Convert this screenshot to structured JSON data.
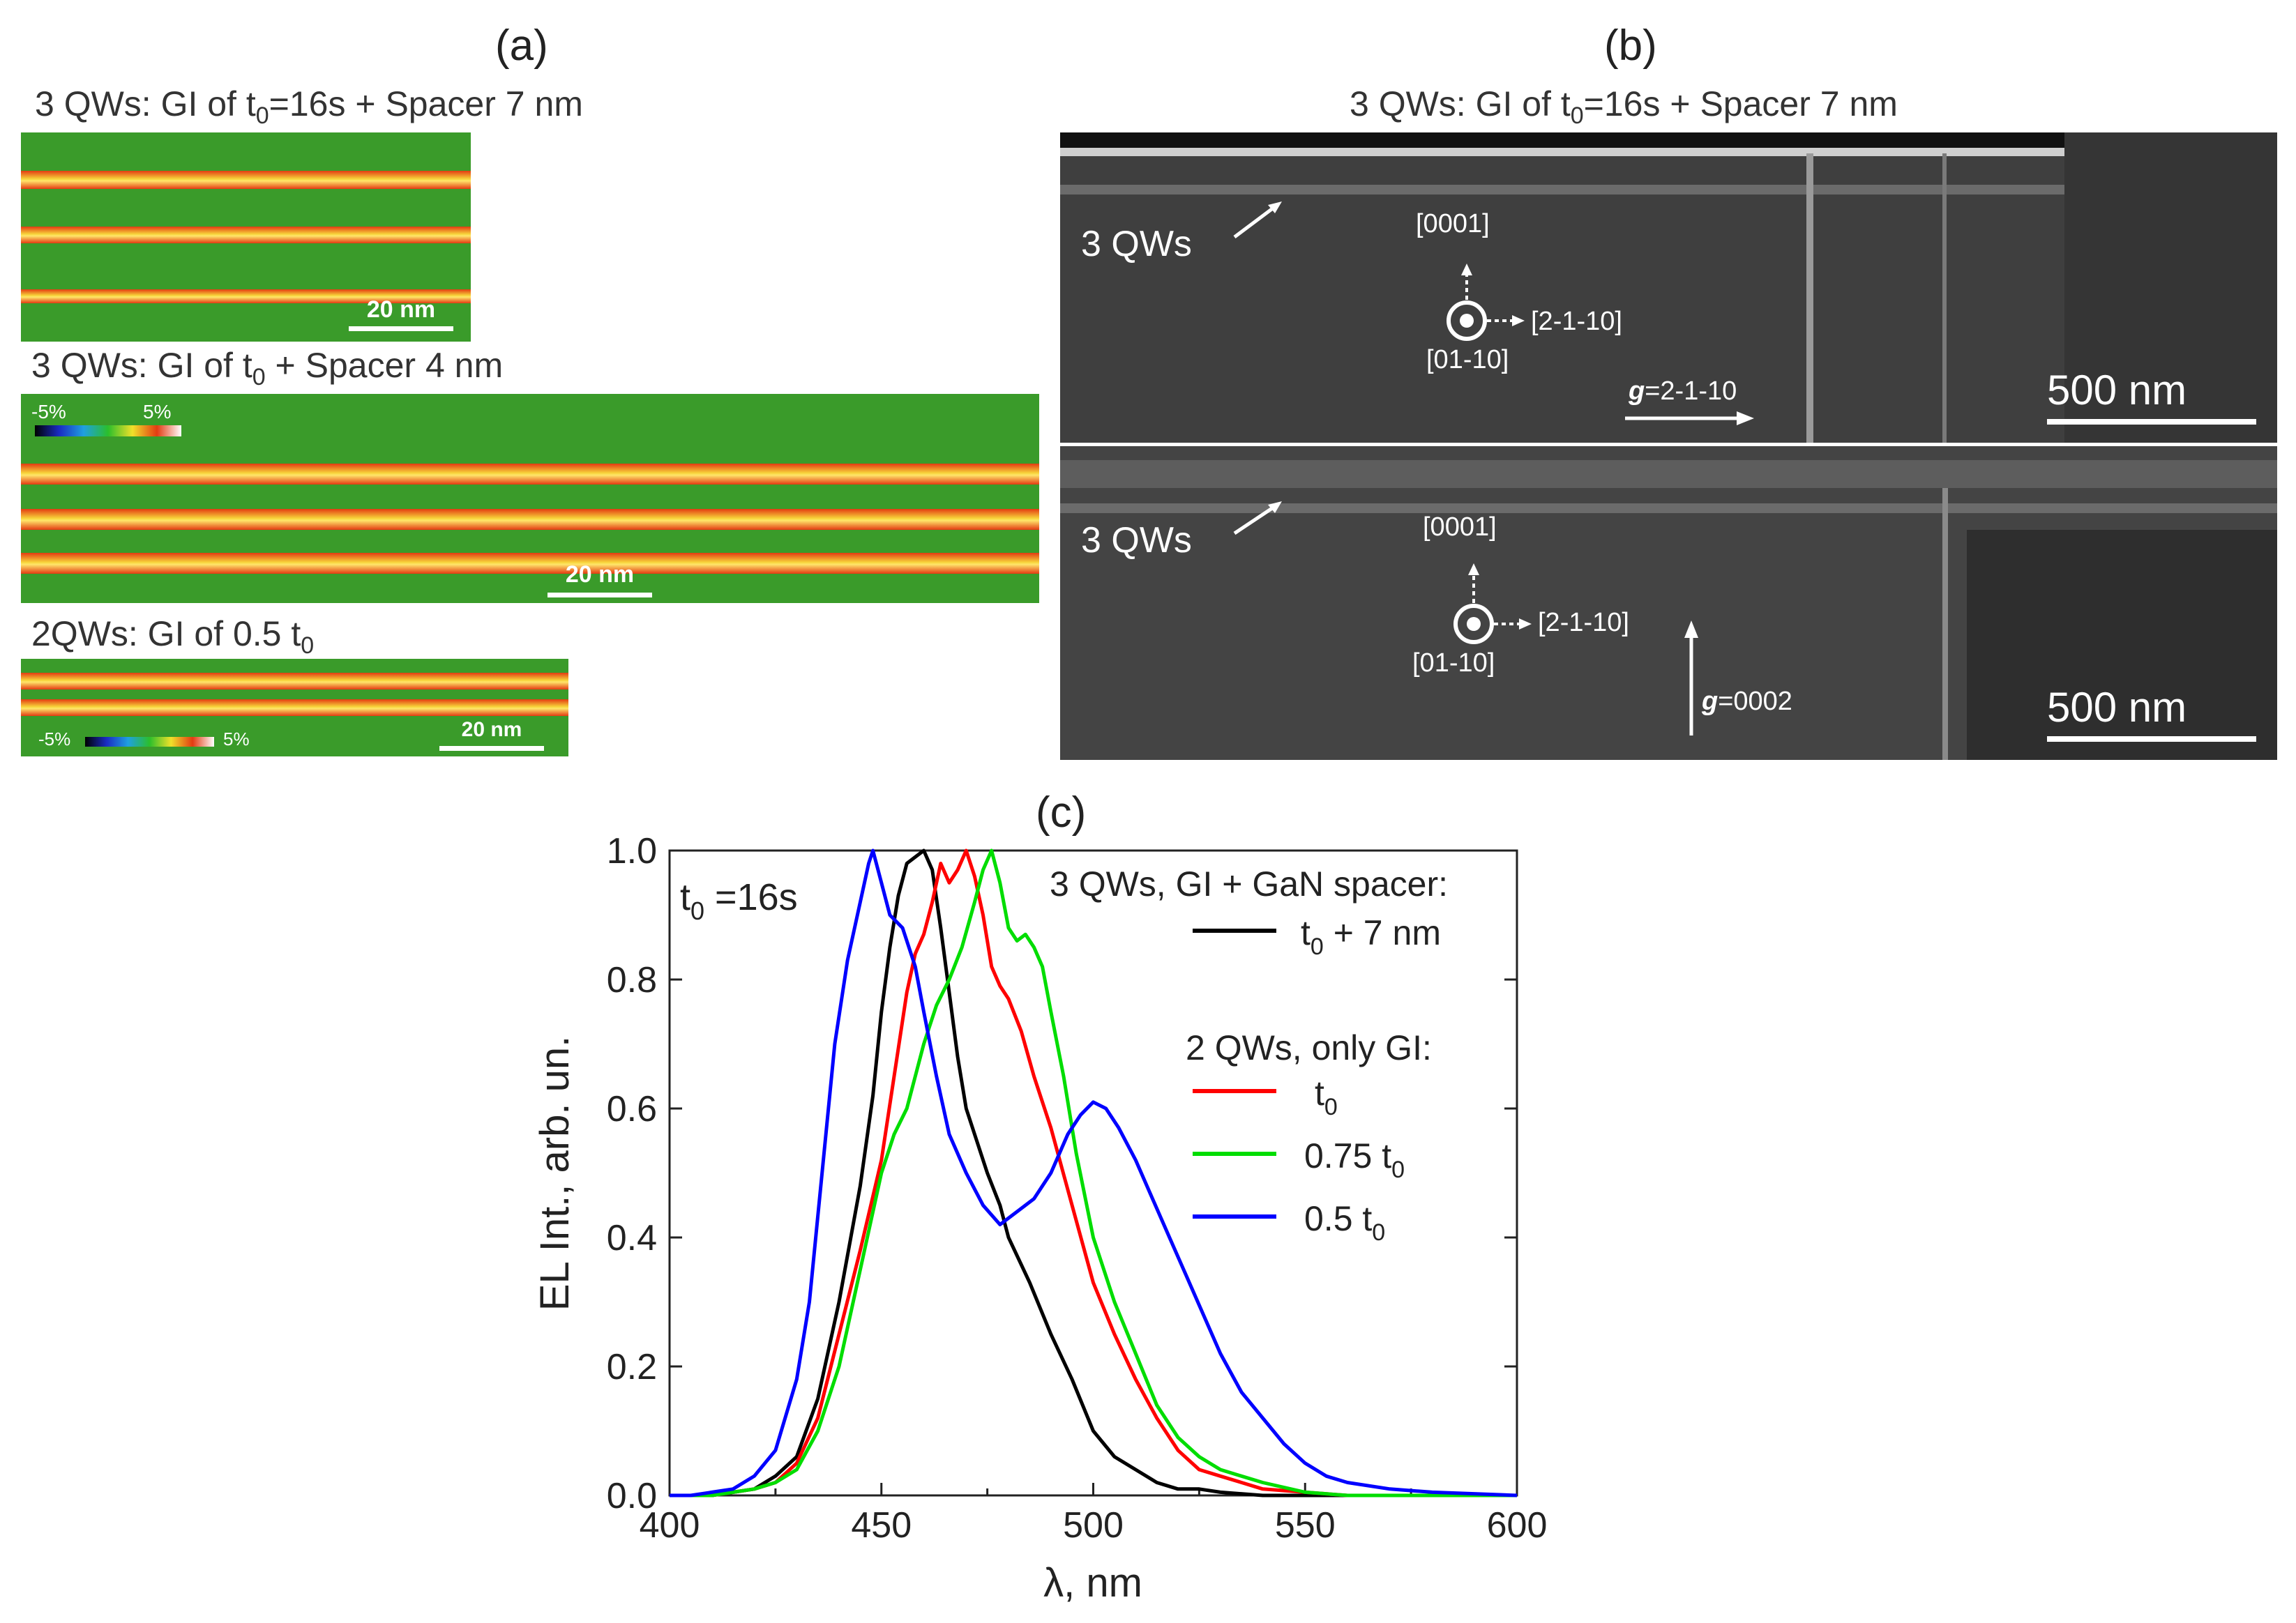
{
  "panel_a": {
    "label": "(a)",
    "image1": {
      "title": "3 QWs: GI of t",
      "title_sub": "0",
      "title_rest": "=16s + Spacer 7 nm",
      "scale": "20 nm"
    },
    "image2": {
      "title": "3 QWs: GI of t",
      "title_sub": "0",
      "title_rest": " + Spacer 4 nm",
      "scale": "20 nm",
      "cb_min": "-5%",
      "cb_max": "5%"
    },
    "image3": {
      "title": "2QWs: GI  of 0.5 t",
      "title_sub": "0",
      "scale": "20 nm",
      "cb_min": "-5%",
      "cb_max": "5%"
    }
  },
  "panel_b": {
    "label": "(b)",
    "title": "3 QWs: GI of t",
    "title_sub": "0",
    "title_rest": "=16s + Spacer 7 nm",
    "top": {
      "qw_label": "3 QWs",
      "dir_up": "[0001]",
      "dir_right": "[2-1-10]",
      "dir_in": "[01-10]",
      "g_label": "g",
      "g_value": "=2-1-10",
      "scale": "500 nm"
    },
    "bottom": {
      "qw_label": "3 QWs",
      "dir_up": "[0001]",
      "dir_right": "[2-1-10]",
      "dir_in": "[01-10]",
      "g_label": "g",
      "g_value": "=0002",
      "scale": "500 nm"
    }
  },
  "panel_c": {
    "label": "(c)"
  },
  "chart_data": {
    "type": "line",
    "xlabel": "λ, nm",
    "ylabel": "EL Int., arb. un.",
    "xlim": [
      400,
      600
    ],
    "ylim": [
      0,
      1.0
    ],
    "xticks": [
      "400",
      "450",
      "500",
      "550",
      "600"
    ],
    "yticks": [
      "0.0",
      "0.2",
      "0.4",
      "0.6",
      "0.8",
      "1.0"
    ],
    "annotation": {
      "text": "t",
      "sub": "0",
      "rest": " =16s"
    },
    "legend": {
      "header1": "3 QWs, GI + GaN spacer:",
      "header2": "2 QWs, only GI:",
      "items": [
        {
          "text": "t",
          "sub": "0",
          "rest": "  + 7 nm"
        },
        {
          "text": "t",
          "sub": "0",
          "rest": ""
        },
        {
          "text": "0.75 t",
          "sub": "0",
          "rest": ""
        },
        {
          "text": "0.5 t",
          "sub": "0",
          "rest": ""
        }
      ]
    },
    "series": [
      {
        "name": "t0 + 7 nm",
        "color": "#000000",
        "x": [
          400,
          410,
          415,
          420,
          425,
          430,
          435,
          440,
          445,
          448,
          450,
          452,
          454,
          456,
          458,
          460,
          462,
          464,
          466,
          468,
          470,
          472,
          475,
          478,
          480,
          485,
          490,
          495,
          500,
          505,
          510,
          515,
          520,
          525,
          530,
          540,
          550,
          560,
          600
        ],
        "y": [
          0,
          0,
          0.005,
          0.01,
          0.03,
          0.06,
          0.15,
          0.3,
          0.48,
          0.62,
          0.75,
          0.85,
          0.93,
          0.98,
          0.99,
          1.0,
          0.97,
          0.88,
          0.78,
          0.68,
          0.6,
          0.56,
          0.5,
          0.45,
          0.4,
          0.33,
          0.25,
          0.18,
          0.1,
          0.06,
          0.04,
          0.02,
          0.01,
          0.01,
          0.005,
          0,
          0,
          0,
          0
        ]
      },
      {
        "name": "t0",
        "color": "#ff0000",
        "x": [
          400,
          410,
          415,
          420,
          425,
          430,
          435,
          440,
          445,
          450,
          453,
          456,
          458,
          460,
          462,
          464,
          466,
          468,
          470,
          472,
          474,
          476,
          478,
          480,
          483,
          486,
          490,
          495,
          500,
          505,
          510,
          515,
          520,
          525,
          530,
          535,
          540,
          550,
          560,
          600
        ],
        "y": [
          0,
          0,
          0.005,
          0.01,
          0.02,
          0.05,
          0.12,
          0.25,
          0.38,
          0.52,
          0.65,
          0.78,
          0.84,
          0.87,
          0.92,
          0.98,
          0.95,
          0.97,
          1.0,
          0.96,
          0.9,
          0.82,
          0.79,
          0.77,
          0.72,
          0.65,
          0.57,
          0.45,
          0.33,
          0.25,
          0.18,
          0.12,
          0.07,
          0.04,
          0.03,
          0.02,
          0.01,
          0.005,
          0,
          0
        ]
      },
      {
        "name": "0.75 t0",
        "color": "#00dd00",
        "x": [
          400,
          410,
          415,
          420,
          425,
          430,
          435,
          440,
          445,
          450,
          453,
          456,
          460,
          463,
          466,
          469,
          472,
          474,
          476,
          478,
          480,
          482,
          484,
          486,
          488,
          490,
          493,
          496,
          500,
          505,
          510,
          515,
          520,
          525,
          530,
          535,
          540,
          550,
          560,
          600
        ],
        "y": [
          0,
          0,
          0.005,
          0.01,
          0.02,
          0.04,
          0.1,
          0.2,
          0.35,
          0.5,
          0.56,
          0.6,
          0.7,
          0.76,
          0.8,
          0.85,
          0.92,
          0.97,
          1.0,
          0.95,
          0.88,
          0.86,
          0.87,
          0.85,
          0.82,
          0.75,
          0.65,
          0.53,
          0.4,
          0.3,
          0.22,
          0.14,
          0.09,
          0.06,
          0.04,
          0.03,
          0.02,
          0.005,
          0,
          0
        ]
      },
      {
        "name": "0.5 t0",
        "color": "#0000ff",
        "x": [
          400,
          405,
          410,
          415,
          420,
          425,
          430,
          433,
          436,
          439,
          442,
          445,
          447,
          448,
          450,
          452,
          455,
          458,
          460,
          463,
          466,
          470,
          474,
          478,
          482,
          486,
          490,
          494,
          497,
          500,
          503,
          506,
          510,
          514,
          518,
          522,
          526,
          530,
          535,
          540,
          545,
          550,
          555,
          560,
          570,
          580,
          600
        ],
        "y": [
          0,
          0,
          0.005,
          0.01,
          0.03,
          0.07,
          0.18,
          0.3,
          0.5,
          0.7,
          0.83,
          0.92,
          0.98,
          1.0,
          0.95,
          0.9,
          0.88,
          0.82,
          0.75,
          0.65,
          0.56,
          0.5,
          0.45,
          0.42,
          0.44,
          0.46,
          0.5,
          0.56,
          0.59,
          0.61,
          0.6,
          0.57,
          0.52,
          0.46,
          0.4,
          0.34,
          0.28,
          0.22,
          0.16,
          0.12,
          0.08,
          0.05,
          0.03,
          0.02,
          0.01,
          0.005,
          0
        ]
      }
    ]
  }
}
